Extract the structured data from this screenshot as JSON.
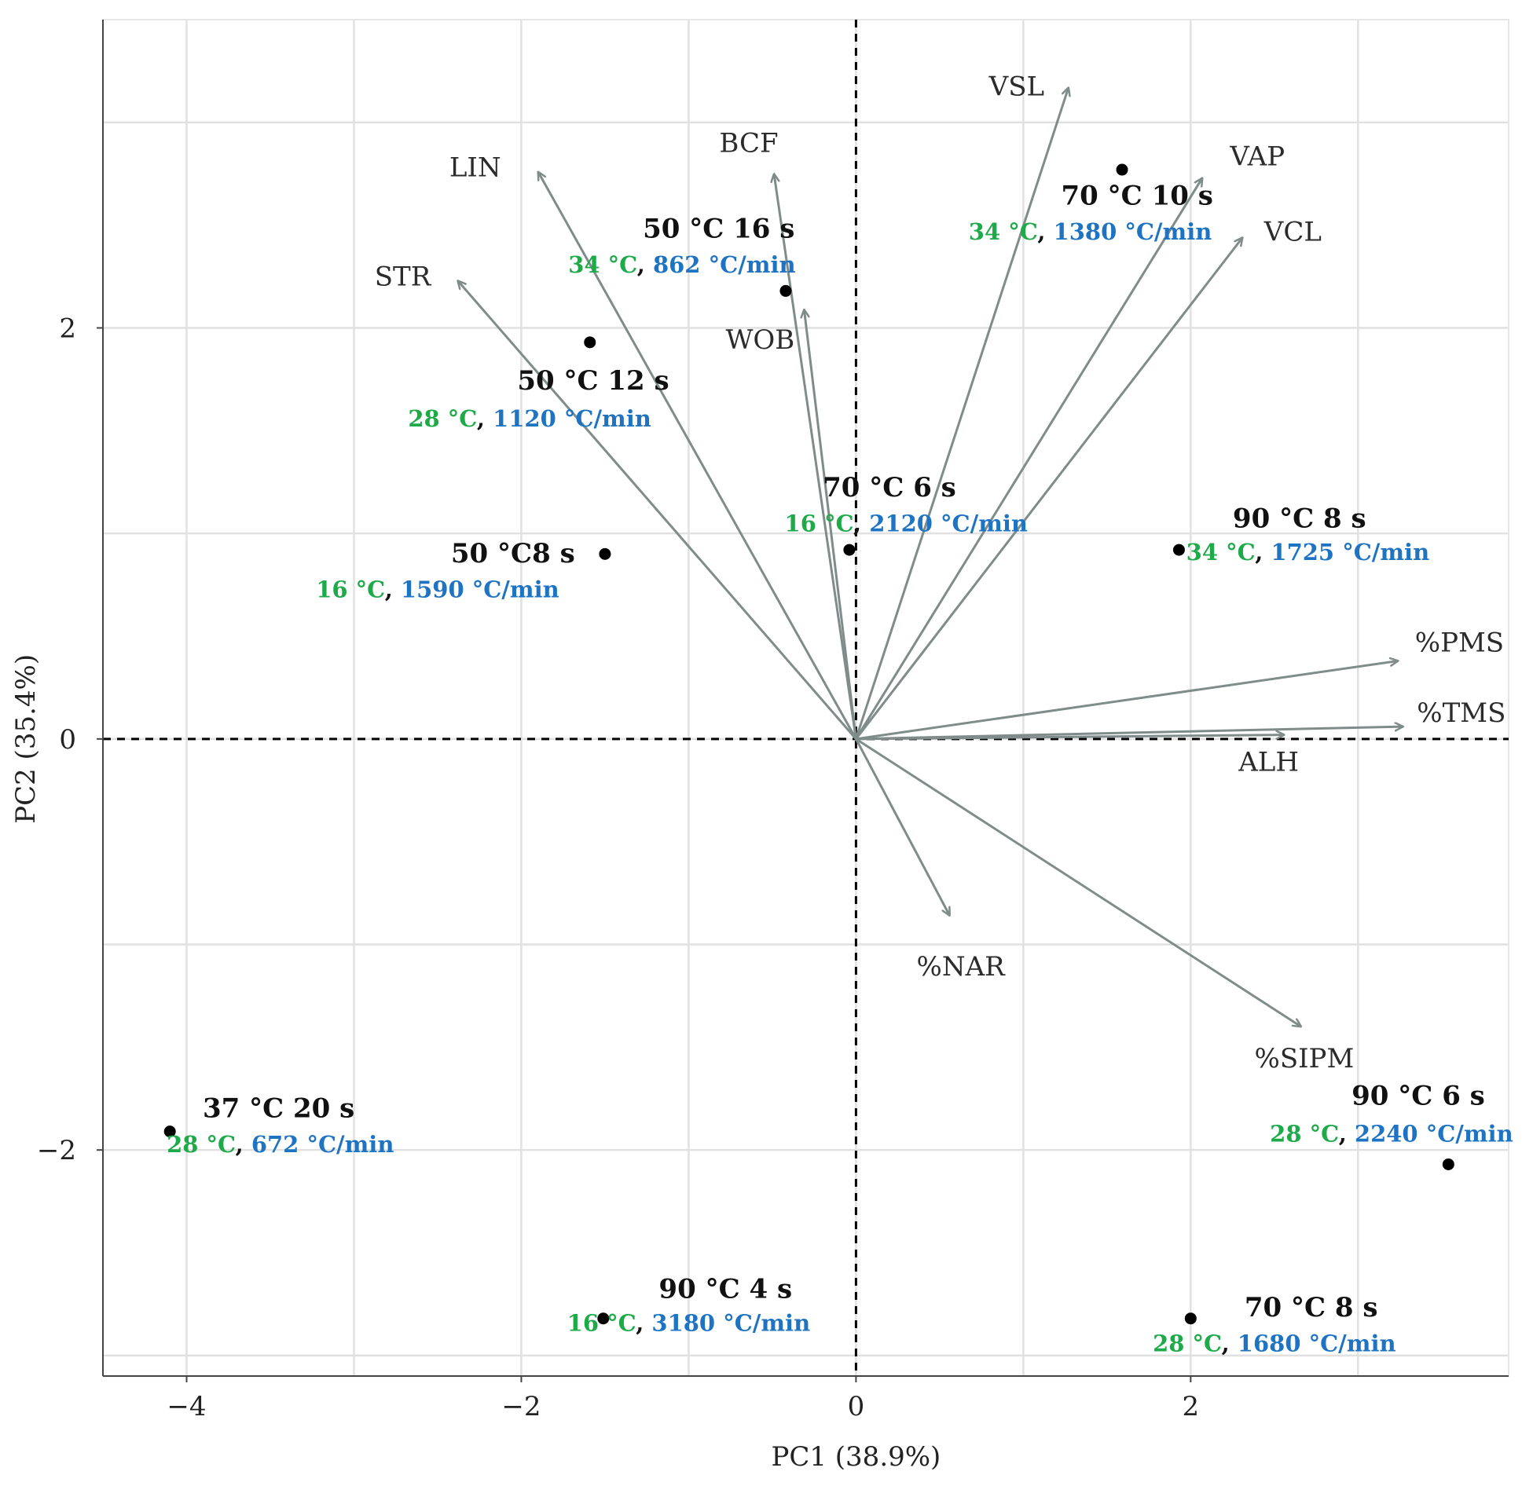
{
  "colors": {
    "arrow": "#7f8c8a",
    "point": "#000000",
    "grid": "#e1e1e1",
    "sub_temp": "#1faa4a",
    "sub_rate": "#1e73c2",
    "zero_line": "#000000"
  },
  "chart_data": {
    "type": "scatter",
    "subtype": "pca-biplot",
    "xlabel": "PC1 (38.9%)",
    "ylabel": "PC2 (35.4%)",
    "xlim": [
      -4.5,
      3.9
    ],
    "ylim": [
      -3.1,
      3.5
    ],
    "xticks": [
      -4,
      -2,
      0,
      2
    ],
    "xtick_labels": [
      "−4",
      "−2",
      "0",
      "2"
    ],
    "yticks": [
      -2,
      0,
      2
    ],
    "ytick_labels": [
      "−2",
      "0",
      "2"
    ],
    "grid": true,
    "zero_lines": "dashed",
    "loadings": [
      {
        "name": "VSL",
        "x": 1.27,
        "y": 3.17
      },
      {
        "name": "VAP",
        "x": 2.07,
        "y": 2.73
      },
      {
        "name": "VCL",
        "x": 2.31,
        "y": 2.44
      },
      {
        "name": "BCF",
        "x": -0.49,
        "y": 2.75
      },
      {
        "name": "LIN",
        "x": -1.9,
        "y": 2.76
      },
      {
        "name": "STR",
        "x": -2.38,
        "y": 2.23
      },
      {
        "name": "WOB",
        "x": -0.31,
        "y": 2.09
      },
      {
        "name": "%PMS",
        "x": 3.24,
        "y": 0.38
      },
      {
        "name": "%TMS",
        "x": 3.27,
        "y": 0.06
      },
      {
        "name": "ALH",
        "x": 2.56,
        "y": 0.02
      },
      {
        "name": "%NAR",
        "x": 0.56,
        "y": -0.86
      },
      {
        "name": "%SIPM",
        "x": 2.66,
        "y": -1.4
      }
    ],
    "points": [
      {
        "name": "70 °C 10 s",
        "temp": "34 °C",
        "rate": "1380 °C/min",
        "x": 1.59,
        "y": 2.77
      },
      {
        "name": "50 °C 16 s",
        "temp": "34 °C",
        "rate": "862 °C/min",
        "x": -0.42,
        "y": 2.18
      },
      {
        "name": "50 °C 12 s",
        "temp": "28 °C",
        "rate": "1120 °C/min",
        "x": -1.59,
        "y": 1.93
      },
      {
        "name": "70 °C 6 s",
        "temp": "16 °C",
        "rate": "2120 °C/min",
        "x": -0.04,
        "y": 0.92
      },
      {
        "name": "50 °C8 s",
        "temp": "16 °C",
        "rate": "1590 °C/min",
        "x": -1.5,
        "y": 0.9
      },
      {
        "name": "90 °C 8 s",
        "temp": "34 °C",
        "rate": "1725 °C/min",
        "x": 1.93,
        "y": 0.92
      },
      {
        "name": "37 °C 20 s",
        "temp": "28 °C",
        "rate": "672 °C/min",
        "x": -4.1,
        "y": -1.91
      },
      {
        "name": "90 °C 6 s",
        "temp": "28 °C",
        "rate": "2240 °C/min",
        "x": 3.54,
        "y": -2.07
      },
      {
        "name": "90 °C 4 s",
        "temp": "16 °C",
        "rate": "3180 °C/min",
        "x": -1.51,
        "y": -2.82
      },
      {
        "name": "70 °C 8 s",
        "temp": "28 °C",
        "rate": "1680 °C/min",
        "x": 2.0,
        "y": -2.82
      }
    ],
    "separator": ", "
  }
}
